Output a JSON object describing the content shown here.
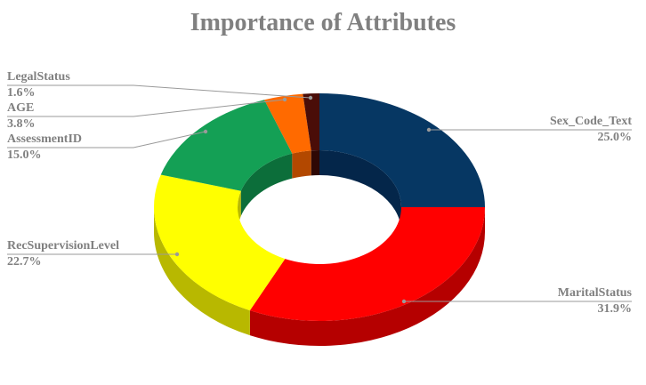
{
  "chart_data": {
    "type": "pie",
    "variant": "donut-3d",
    "title": "Importance of Attributes",
    "legend": "none",
    "slices": [
      {
        "label": "Sex_Code_Text",
        "value": 25.0,
        "value_label": "25.0%",
        "color": "#063763",
        "side_color": "#04264a"
      },
      {
        "label": "MaritalStatus",
        "value": 31.9,
        "value_label": "31.9%",
        "color": "#ff0000",
        "side_color": "#b50000"
      },
      {
        "label": "RecSupervisionLevel",
        "value": 22.7,
        "value_label": "22.7%",
        "color": "#ffff00",
        "side_color": "#b8b800"
      },
      {
        "label": "AssessmentID",
        "value": 15.0,
        "value_label": "15.0%",
        "color": "#14a055",
        "side_color": "#0c6e3a"
      },
      {
        "label": "AGE",
        "value": 3.8,
        "value_label": "3.8%",
        "color": "#ff6a00",
        "side_color": "#b34800"
      },
      {
        "label": "LegalStatus",
        "value": 1.6,
        "value_label": "1.6%",
        "color": "#4a0d08",
        "side_color": "#2e0805"
      }
    ]
  }
}
